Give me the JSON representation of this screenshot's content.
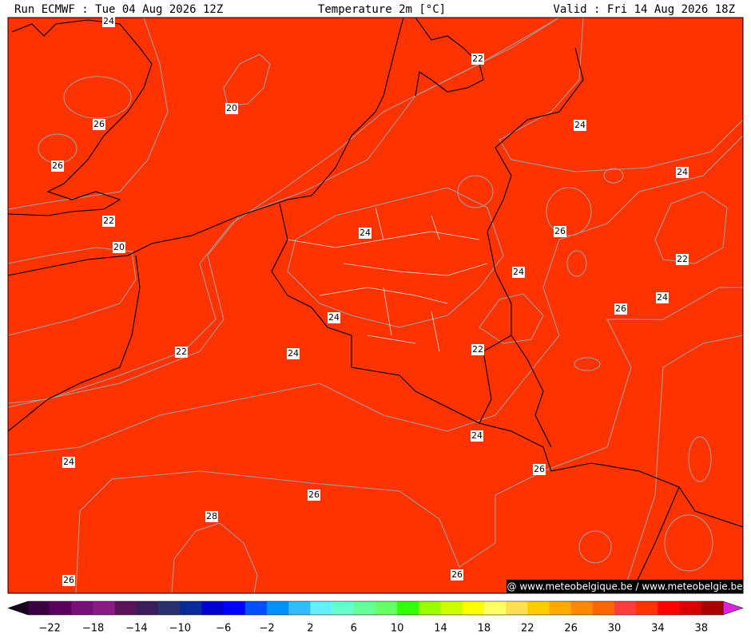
{
  "header": {
    "run": "Run ECMWF : Tue 04 Aug 2026 12Z",
    "title": "Temperature 2m [°C]",
    "valid": "Valid : Fri 14 Aug 2026 18Z"
  },
  "contour_labels": [
    24,
    22,
    20,
    26,
    24,
    26,
    24,
    22,
    24,
    26,
    20,
    22,
    24,
    24,
    26,
    24,
    22,
    22,
    24,
    24,
    24,
    26,
    26,
    28,
    26,
    26
  ],
  "colorbar": {
    "range": [
      -24,
      40
    ],
    "under_color": "#1a0020",
    "over_color": "#dd22dd",
    "colors": [
      "#3a0040",
      "#5c0060",
      "#78107a",
      "#8c1a86",
      "#5a1458",
      "#3a1e5a",
      "#2a2f6e",
      "#0a2a99",
      "#0000cc",
      "#0000ff",
      "#0050ff",
      "#0090ff",
      "#33bbff",
      "#66eeff",
      "#66ffcc",
      "#66ff99",
      "#66ff66",
      "#33ff00",
      "#99ff00",
      "#ccff00",
      "#ffff00",
      "#ffff66",
      "#ffe055",
      "#ffcc00",
      "#ffaa00",
      "#ff8800",
      "#ff6600",
      "#ff3d3d",
      "#ff3300",
      "#ff0000",
      "#d80000",
      "#aa0000"
    ],
    "ticks": [
      {
        "value": -22,
        "label": "−22"
      },
      {
        "value": -18,
        "label": "−18"
      },
      {
        "value": -14,
        "label": "−14"
      },
      {
        "value": -10,
        "label": "−10"
      },
      {
        "value": -6,
        "label": "−6"
      },
      {
        "value": -2,
        "label": "−2"
      },
      2,
      6,
      10,
      14,
      18,
      22,
      26,
      30,
      34,
      38
    ]
  },
  "watermark": "@ www.meteobelgique.be / www.meteobelgie.be"
}
